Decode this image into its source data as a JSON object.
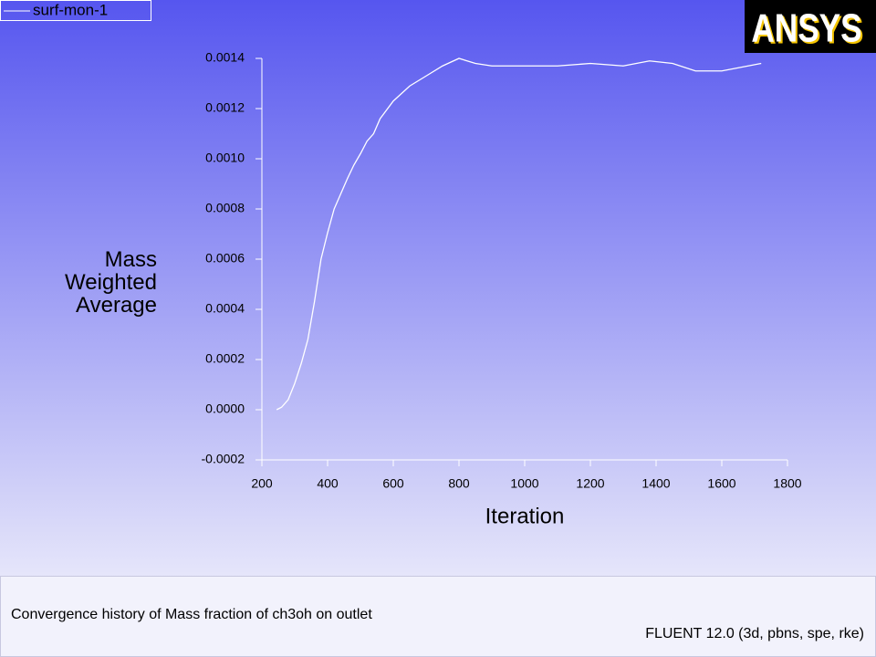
{
  "chart_data": {
    "type": "line",
    "logo": "ANSYS",
    "xlabel": "Iteration",
    "ylabel": "Mass Weighted Average",
    "caption": "Convergence history of Mass fraction of ch3oh on outlet",
    "footer": "FLUENT 12.0 (3d, pbns, spe, rke)",
    "x": [
      245,
      260,
      280,
      300,
      320,
      340,
      360,
      380,
      400,
      420,
      440,
      460,
      480,
      500,
      520,
      540,
      560,
      600,
      650,
      700,
      750,
      800,
      850,
      900,
      1000,
      1100,
      1200,
      1300,
      1380,
      1450,
      1520,
      1600,
      1680,
      1720
    ],
    "series": [
      {
        "name": "surf-mon-1",
        "color": "#ffffff",
        "values": [
          0,
          1e-05,
          4e-05,
          0.000105,
          0.000185,
          0.00028,
          0.00043,
          0.0006,
          0.000705,
          0.0008,
          0.00086,
          0.00092,
          0.000975,
          0.00102,
          0.00107,
          0.0011,
          0.00116,
          0.00123,
          0.00129,
          0.00133,
          0.00137,
          0.0014,
          0.00138,
          0.00137,
          0.00137,
          0.00137,
          0.00138,
          0.00137,
          0.00139,
          0.00138,
          0.00135,
          0.00135,
          0.00137,
          0.00138
        ]
      }
    ],
    "xlim": [
      200,
      1800
    ],
    "xticks": [
      200,
      400,
      600,
      800,
      1000,
      1200,
      1400,
      1600,
      1800
    ],
    "ylim": [
      -0.0002,
      0.0014
    ],
    "yticks": [
      -0.0002,
      {
        "value": 0,
        "label": "0.0000"
      },
      0.0002,
      0.0004,
      0.0006,
      0.0008,
      {
        "value": 0.001,
        "label": "0.0010"
      },
      0.0012,
      0.0014
    ]
  }
}
